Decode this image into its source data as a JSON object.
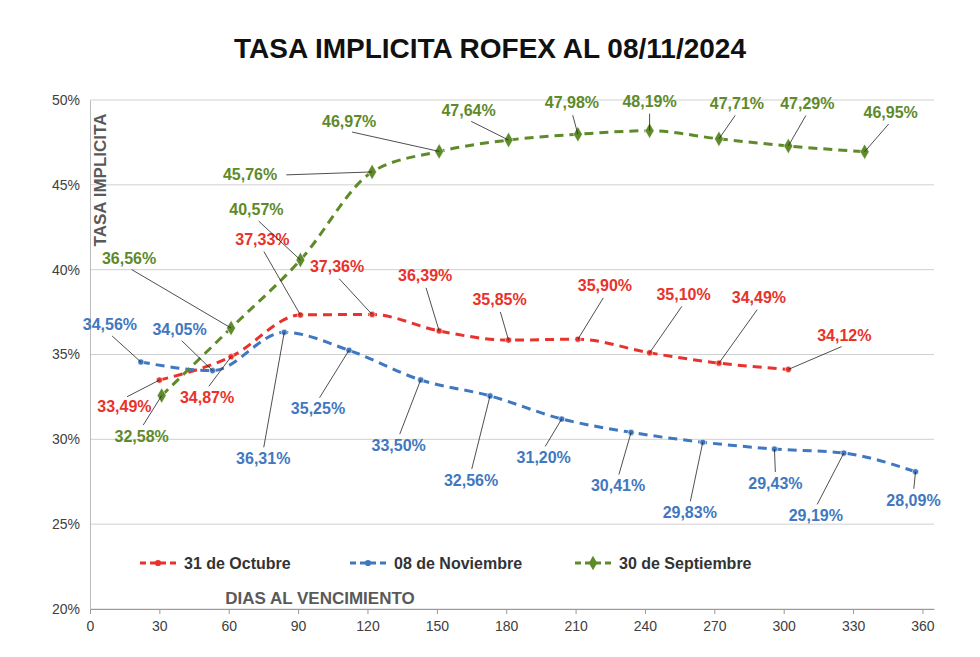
{
  "chart_data": {
    "type": "line",
    "title": "TASA IMPLICITA ROFEX AL 08/11/2024",
    "x_label": "DIAS AL VENCIMIENTO",
    "y_label": "TASA IMPLICITA",
    "xlim": [
      0,
      365
    ],
    "xticks": [
      0,
      30,
      60,
      90,
      120,
      150,
      180,
      210,
      240,
      270,
      300,
      330,
      360
    ],
    "ylim": [
      20,
      50
    ],
    "yticks": [
      {
        "value": 20,
        "label": "20%"
      },
      {
        "value": 25,
        "label": "25%"
      },
      {
        "value": 30,
        "label": "30%"
      },
      {
        "value": 35,
        "label": "35%"
      },
      {
        "value": 40,
        "label": "40%"
      },
      {
        "value": 45,
        "label": "45%"
      },
      {
        "value": 50,
        "label": "50%"
      }
    ],
    "grid": true,
    "legend": "bottom",
    "data_labels": true,
    "series": [
      {
        "name": "31 de Octubre",
        "color": "#e8322b",
        "marker": "circle",
        "line_style": "dashed",
        "x": [
          30,
          61,
          91,
          122,
          151,
          181,
          211,
          242,
          272,
          302
        ],
        "values": [
          33.49,
          34.87,
          37.33,
          37.36,
          36.39,
          35.85,
          35.9,
          35.1,
          34.49,
          34.12
        ],
        "value_labels": [
          "33,49%",
          "34,87%",
          "37,33%",
          "37,36%",
          "36,39%",
          "35,85%",
          "35,90%",
          "35,10%",
          "34,49%",
          "34,12%"
        ]
      },
      {
        "name": "08 de Noviembre",
        "color": "#3f78c0",
        "marker": "circle",
        "line_style": "dashed",
        "x": [
          22,
          53,
          84,
          112,
          143,
          173,
          204,
          234,
          265,
          296,
          326,
          357
        ],
        "values": [
          34.56,
          34.05,
          36.31,
          35.25,
          33.5,
          32.56,
          31.2,
          30.41,
          29.83,
          29.43,
          29.19,
          28.09
        ],
        "value_labels": [
          "34,56%",
          "34,05%",
          "36,31%",
          "35,25%",
          "33,50%",
          "32,56%",
          "31,20%",
          "30,41%",
          "29,83%",
          "29,43%",
          "29,19%",
          "28,09%"
        ]
      },
      {
        "name": "30 de Septiembre",
        "color": "#5e8a2a",
        "marker": "diamond",
        "line_style": "dashed",
        "x": [
          31,
          61,
          91,
          122,
          151,
          181,
          211,
          242,
          272,
          302,
          335
        ],
        "values": [
          32.58,
          36.56,
          40.57,
          45.76,
          46.97,
          47.64,
          47.98,
          48.19,
          47.71,
          47.29,
          46.95
        ],
        "value_labels": [
          "32,58%",
          "36,56%",
          "40,57%",
          "45,76%",
          "46,97%",
          "47,64%",
          "47,98%",
          "48,19%",
          "47,71%",
          "47,29%",
          "46,95%"
        ]
      }
    ]
  }
}
